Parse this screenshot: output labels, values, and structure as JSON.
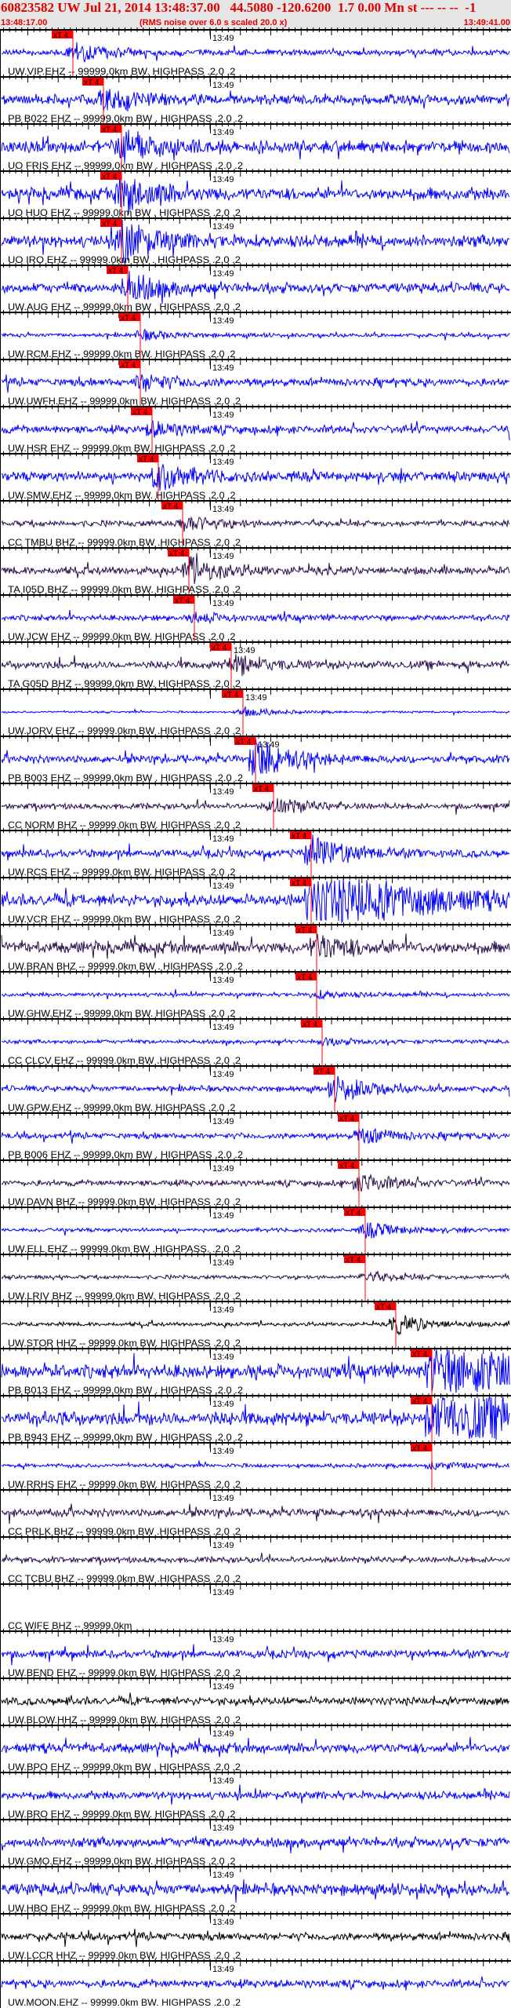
{
  "header": {
    "title": "60823582 UW Jul 21, 2014 13:48:37.00   44.5080 -120.6200  1.7 0.00 Mn st --- -- --  -1",
    "start_time": "13:48:17.00",
    "note": "(RMS noise over 6.0 s scaled 20.0 x)",
    "end_time": "13:49:41.00"
  },
  "axis": {
    "minute_label": "13:49"
  },
  "pick_label": "xT 4",
  "colors": {
    "header_text": "#e00000",
    "pick": "#ff0000",
    "ehz": "#0000ff",
    "bhz": "#2a0f4e",
    "hhz": "#000000",
    "header_bg": "#e6e6e6"
  },
  "traces": [
    {
      "label": "UW.VIP.EHZ -- 99999.0km BW. HIGHPASS .2.0 .2",
      "color": "#0000ff",
      "pick": true
    },
    {
      "label": "PB B022 EHZ -- 99999.0km BW . HIGHPASS .2.0 .2",
      "color": "#0000ff",
      "pick": true
    },
    {
      "label": "UO FRIS EHZ -- 99999.0km BW . HIGHPASS .2.0 .2",
      "color": "#0000ff",
      "pick": true
    },
    {
      "label": "UO HUO EHZ -- 99999.0km BW . HIGHPASS .2.0 .2",
      "color": "#0000ff",
      "pick": true
    },
    {
      "label": "UO IRO EHZ -- 99999.0km BW . HIGHPASS .2.0 .2",
      "color": "#0000ff",
      "pick": true
    },
    {
      "label": "UW.AUG EHZ -- 99999.0km BW . HIGHPASS .2.0 .2",
      "color": "#0000ff",
      "pick": true
    },
    {
      "label": "UW.RCM.EHZ -- 99999.0km BW. HIGHPASS .2.0 .2",
      "color": "#0000ff",
      "pick": true
    },
    {
      "label": "UW.UWFH.EHZ -- 99999.0km BW. HIGHPASS .2.0 .2",
      "color": "#0000ff",
      "pick": true
    },
    {
      "label": "UW.HSR EHZ -- 99999.0km BW. HIGHPASS .2.0 .2",
      "color": "#0000ff",
      "pick": true
    },
    {
      "label": "UW.SMW.EHZ -- 99999.0km BW. HIGHPASS .2.0 .2",
      "color": "#0000ff",
      "pick": true
    },
    {
      "label": "CC TMBU BHZ -- 99999.0km BW .HIGHPASS .2.0 .2",
      "color": "#2a0f4e",
      "pick": true
    },
    {
      "label": "TA I05D BHZ -- 99999.0km BW. HIGHPASS .2.0 .2",
      "color": "#2a0f4e",
      "pick": true
    },
    {
      "label": "UW.JCW EHZ -- 99999.0km BW. HIGHPASS .2.0 .2",
      "color": "#0000ff",
      "pick": true
    },
    {
      "label": "TA G05D BHZ -- 99999.0km BW. HIGHPASS .2.0 .2",
      "color": "#2a0f4e",
      "pick": true
    },
    {
      "label": "UW.JORV EHZ -- 99999.0km BW .HIGHPASS .2.0 .2",
      "color": "#0000ff",
      "pick": true
    },
    {
      "label": "PB B003 EHZ -- 99999.0km BW . HIGHPASS .2.0 .2",
      "color": "#0000ff",
      "pick": true
    },
    {
      "label": "CC NORM BHZ -- 99999.0km BW. HIGHPASS .2.0 .2",
      "color": "#2a0f4e",
      "pick": true
    },
    {
      "label": "UW.RCS EHZ -- 99999.0km BW. HIGHPASS .2.0 .2",
      "color": "#0000ff",
      "pick": true
    },
    {
      "label": "UW.VCR EHZ -- 99999.0km BW . HIGHPASS .2.0 .2",
      "color": "#0000ff",
      "pick": true
    },
    {
      "label": "UW.BRAN BHZ -- 99999.0km BW . HIGHPASS .2.0 .2",
      "color": "#2a0f4e",
      "pick": true
    },
    {
      "label": "UW.GHW.EHZ -- 99999.0km BW. HIGHPASS .2.0 .2",
      "color": "#0000ff",
      "pick": true
    },
    {
      "label": "CC CLCV EHZ -- 99999.0km BW .HIGHPASS .2.0 .2",
      "color": "#0000ff",
      "pick": true
    },
    {
      "label": "UW.GPW.EHZ -- 99999.0km BW. HIGHPASS .2.0 .2",
      "color": "#0000ff",
      "pick": true
    },
    {
      "label": "PB B006 EHZ -- 99999.0km BW . HIGHPASS .2.0 .2",
      "color": "#0000ff",
      "pick": true
    },
    {
      "label": "UW.DAVN BHZ -- 99999.0km BW .HIGHPASS .2.0 .2",
      "color": "#2a0f4e",
      "pick": true
    },
    {
      "label": "UW.ELL EHZ -- 99999.0km BW .HIGHPASS. .2.0 .2",
      "color": "#0000ff",
      "pick": true
    },
    {
      "label": "UW.LRIV BHZ -- 99999.0km BW. HIGHPASS .2.0 .2",
      "color": "#2a0f4e",
      "pick": true
    },
    {
      "label": "UW.STOR HHZ -- 99999.0km BW. HIGHPASS .2.0 .2",
      "color": "#000000",
      "pick": true
    },
    {
      "label": "PB B013 EHZ -- 99999.0km BW . HIGHPASS .2.0 .2",
      "color": "#0000ff",
      "pick": true
    },
    {
      "label": "PB B943 EHZ -- 99999.0km BW . HIGHPASS .2.0 .2",
      "color": "#0000ff",
      "pick": true
    },
    {
      "label": "UW.RRHS EHZ -- 99999.0km BW. HIGHPASS .2.0 .2",
      "color": "#0000ff",
      "pick": true
    },
    {
      "label": "CC PRLK BHZ -- 99999.0km BW .HIGHPASS .2.0 .2",
      "color": "#2a0f4e",
      "pick": false
    },
    {
      "label": "CC TCBU BHZ -- 99999.0km BW .HIGHPASS .2.0 .2",
      "color": "#2a0f4e",
      "pick": false
    },
    {
      "label": "CC WIFE BHZ -- 99999.0km",
      "color": "#2a0f4e",
      "pick": false
    },
    {
      "label": "UW.BEND EHZ -- 99999.0km BW. HIGHPASS .2.0 .2",
      "color": "#0000ff",
      "pick": false
    },
    {
      "label": "UW.BLOW.HHZ -- 99999.0km BW. HIGHPASS .2.0 .2",
      "color": "#000000",
      "pick": false
    },
    {
      "label": "UW.BPO EHZ -- 99999.0km BW . HIGHPASS .2.0 .2",
      "color": "#0000ff",
      "pick": false
    },
    {
      "label": "UW.BRO EHZ -- 99999.0km BW. HIGHPASS .2.0 .2",
      "color": "#0000ff",
      "pick": false
    },
    {
      "label": "UW.GMO.EHZ -- 99999.0km BW. HIGHPASS .2.0 .2",
      "color": "#0000ff",
      "pick": false
    },
    {
      "label": "UW.HBO EHZ -- 99999.0km BW. HIGHPASS .2.0 .2",
      "color": "#0000ff",
      "pick": false
    },
    {
      "label": "UW.LCCR HHZ -- 99999.0km BW. HIGHPASS .2.0 .2",
      "color": "#000000",
      "pick": false
    },
    {
      "label": "UW.MOON.EHZ -- 99999.0km BW. HIGHPASS .2.0 .2",
      "color": "#0000ff",
      "pick": false
    }
  ]
}
